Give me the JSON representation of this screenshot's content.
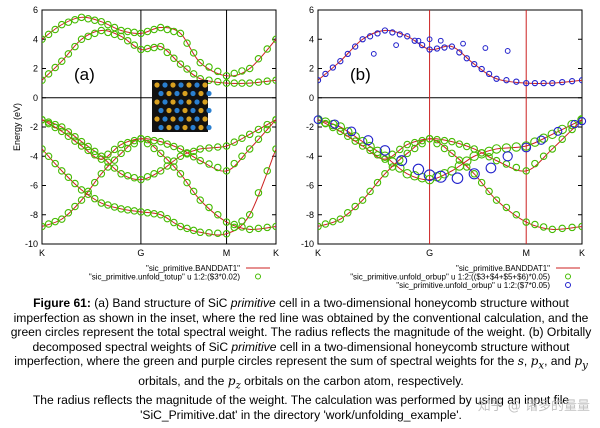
{
  "panel_a": {
    "label": "(a)",
    "ylabel": "Energy (eV)",
    "yticks": [
      "6",
      "4",
      "2",
      "0",
      "-2",
      "-4",
      "-6",
      "-8",
      "-10"
    ],
    "xticks": [
      "K",
      "G",
      "M",
      "K"
    ],
    "legend": [
      {
        "text": "\"sic_primitive.BANDDAT1\"",
        "kind": "line",
        "color": "#cc2222"
      },
      {
        "text": "\"sic_primitive.unfold_totup\" u 1:2:($3*0.02)",
        "kind": "circle",
        "color": "#44bb00"
      }
    ]
  },
  "panel_b": {
    "label": "(b)",
    "yticks": [
      "6",
      "4",
      "2",
      "0",
      "-2",
      "-4",
      "-6",
      "-8",
      "-10"
    ],
    "xticks": [
      "K",
      "G",
      "M",
      "K"
    ],
    "legend": [
      {
        "text": "\"sic_primitive.BANDDAT1\"",
        "kind": "line",
        "color": "#cc2222"
      },
      {
        "text": "\"sic_primitive.unfold_orbup\" u 1:2:(($3+$4+$5+$6)*0.05)",
        "kind": "circle",
        "color": "#44bb00"
      },
      {
        "text": "\"sic_primitive.unfold_orbup\" u 1:2:($7*0.05)",
        "kind": "circle",
        "color": "#2222cc"
      }
    ]
  },
  "caption": {
    "figure_label": "Figure 61:",
    "p1": " (a) Band structure of SiC ",
    "p1_em": "primitive",
    "p2": " cell in a two-dimensional honeycomb structure without imperfection as shown in the inset, where the red line was obtained by the conventional calculation, and the green circles represent the total spectral weight. The radius reflects the magnitude of the weight. (b) Orbitally decomposed spectral weights of SiC ",
    "p2_em": "primitive",
    "p3": " cell in a two-dimensional honeycomb structure without imperfection, where the green and purple circles represent the sum of spectral weights for the ",
    "m_s": "s",
    "sep1": ", ",
    "m_px": "p",
    "m_px_sub": "x",
    "sep2": ", and ",
    "m_py": "p",
    "m_py_sub": "y",
    "p4": " orbitals, and the ",
    "m_pz": "p",
    "m_pz_sub": "z",
    "p5": " orbitals on the carbon atom, respectively."
  },
  "caption2": "The radius reflects the magnitude of the weight. The calculation was performed by using an input file 'SiC_Primitive.dat' in the directory 'work/unfolding_example'.",
  "watermark": "知乎 @ 诸多的量量",
  "chart_data": [
    {
      "type": "line",
      "title": "(a)",
      "xlabel": "",
      "ylabel": "Energy (eV)",
      "ylim": [
        -10,
        6
      ],
      "x_ticks": [
        "K",
        "G",
        "M",
        "K"
      ],
      "x_tick_positions": [
        0,
        1,
        1.866,
        2.366
      ],
      "series": [
        {
          "x": [
            0,
            0.2,
            0.4,
            0.6,
            0.8,
            1.0,
            1.2,
            1.4,
            1.6,
            1.866,
            2.1,
            2.366
          ],
          "y": [
            -1.5,
            -2.0,
            -3.0,
            -4.0,
            -5.2,
            -5.6,
            -5.0,
            -4.0,
            -3.5,
            -3.3,
            -2.5,
            -1.5
          ]
        },
        {
          "x": [
            0,
            0.2,
            0.4,
            0.6,
            0.8,
            1.0,
            1.2,
            1.4,
            1.6,
            1.866,
            2.1,
            2.366
          ],
          "y": [
            -1.5,
            -2.3,
            -3.3,
            -4.2,
            -3.2,
            -2.8,
            -3.0,
            -3.5,
            -4.3,
            -5.0,
            -3.5,
            -1.5
          ]
        },
        {
          "x": [
            0,
            0.2,
            0.4,
            0.6,
            0.8,
            1.0,
            1.2,
            1.4,
            1.6,
            1.866,
            2.1,
            2.366
          ],
          "y": [
            -8.8,
            -8.3,
            -7.0,
            -5.2,
            -3.8,
            -2.8,
            -3.8,
            -5.2,
            -7.0,
            -8.5,
            -9.0,
            -8.8
          ]
        },
        {
          "x": [
            0,
            0.2,
            0.4,
            0.6,
            0.8,
            1.0,
            1.2,
            1.4,
            1.6,
            1.866,
            2.1,
            2.366
          ],
          "y": [
            -3.5,
            -5.0,
            -6.3,
            -7.2,
            -7.6,
            -7.8,
            -8.0,
            -8.8,
            -9.2,
            -9.3,
            -8.0,
            -3.5
          ]
        },
        {
          "x": [
            0,
            0.2,
            0.4,
            0.6,
            0.8,
            1.0,
            1.2,
            1.4,
            1.6,
            1.866,
            2.1,
            2.366
          ],
          "y": [
            1.2,
            2.5,
            4.0,
            4.6,
            4.2,
            3.3,
            3.5,
            2.3,
            1.3,
            1.0,
            1.0,
            1.2
          ]
        },
        {
          "x": [
            0,
            0.2,
            0.4,
            0.6,
            0.8,
            1.0,
            1.2,
            1.4,
            1.6,
            1.866,
            2.1,
            2.366
          ],
          "y": [
            4.0,
            5.0,
            5.5,
            5.2,
            4.6,
            4.4,
            4.8,
            4.4,
            2.4,
            1.5,
            2.0,
            4.0
          ]
        }
      ]
    },
    {
      "type": "scatter",
      "title": "(b)",
      "xlabel": "",
      "ylabel": "",
      "ylim": [
        -10,
        6
      ],
      "x_ticks": [
        "K",
        "G",
        "M",
        "K"
      ],
      "x_tick_positions": [
        0,
        1,
        1.866,
        2.366
      ],
      "series": [
        {
          "x": [
            0,
            0.2,
            0.4,
            0.6,
            0.8,
            1.0,
            1.2,
            1.4,
            1.6,
            1.866,
            2.1,
            2.366
          ],
          "y": [
            -1.5,
            -2.0,
            -3.0,
            -4.0,
            -5.2,
            -5.6,
            -5.0,
            -4.0,
            -3.5,
            -3.3,
            -2.5,
            -1.5
          ]
        },
        {
          "x": [
            0,
            0.2,
            0.4,
            0.6,
            0.8,
            1.0,
            1.2,
            1.4,
            1.6,
            1.866,
            2.1,
            2.366
          ],
          "y": [
            -1.5,
            -2.3,
            -3.3,
            -4.2,
            -3.2,
            -2.8,
            -3.0,
            -3.5,
            -4.3,
            -5.0,
            -3.5,
            -1.5
          ]
        },
        {
          "x": [
            0,
            0.2,
            0.4,
            0.6,
            0.8,
            1.0,
            1.2,
            1.4,
            1.6,
            1.866,
            2.1,
            2.366
          ],
          "y": [
            -8.8,
            -8.3,
            -7.0,
            -5.2,
            -3.8,
            -2.8,
            -3.8,
            -5.2,
            -7.0,
            -8.5,
            -9.0,
            -8.8
          ]
        },
        {
          "x": [
            0,
            0.2,
            0.4,
            0.6,
            0.8,
            1.0,
            1.2,
            1.4,
            1.6,
            1.866,
            2.1,
            2.366
          ],
          "y": [
            1.2,
            2.5,
            4.0,
            4.6,
            4.2,
            3.3,
            3.5,
            2.3,
            1.3,
            1.0,
            1.0,
            1.2
          ]
        }
      ]
    }
  ]
}
